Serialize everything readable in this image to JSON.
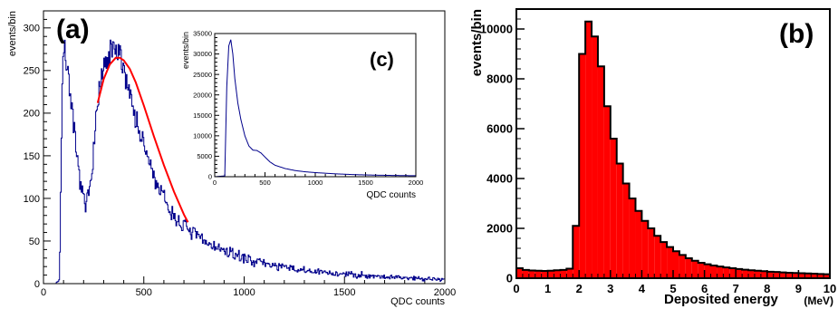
{
  "chart_data": [
    {
      "panel": "a",
      "type": "line",
      "panel_label": "(a)",
      "xlabel": "QDC counts",
      "ylabel": "events/bin",
      "xlim": [
        0,
        2000
      ],
      "ylim": [
        0,
        320
      ],
      "x_ticks": [
        0,
        500,
        1000,
        1500,
        2000
      ],
      "y_ticks": [
        0,
        50,
        100,
        150,
        200,
        250,
        300
      ],
      "series": [
        {
          "role": "histogram",
          "color": "#00008b",
          "x": [
            60,
            80,
            95,
            110,
            130,
            150,
            170,
            190,
            210,
            230,
            250,
            270,
            290,
            310,
            330,
            350,
            370,
            390,
            410,
            430,
            450,
            475,
            500,
            525,
            550,
            575,
            600,
            625,
            650,
            700,
            750,
            800,
            850,
            900,
            950,
            1000,
            1100,
            1200,
            1300,
            1400,
            1500,
            1600,
            1700,
            1800,
            1900,
            2000
          ],
          "y": [
            0,
            5,
            260,
            270,
            235,
            180,
            140,
            110,
            88,
            110,
            160,
            210,
            240,
            255,
            265,
            275,
            268,
            260,
            245,
            225,
            205,
            180,
            160,
            145,
            125,
            112,
            100,
            88,
            78,
            68,
            58,
            50,
            44,
            38,
            34,
            30,
            24,
            19,
            15,
            13,
            11,
            10,
            8,
            7,
            6,
            5
          ]
        },
        {
          "role": "fit",
          "color": "#ff0000",
          "x": [
            270,
            300,
            330,
            360,
            380,
            400,
            430,
            460,
            500,
            550,
            600,
            650,
            700,
            720
          ],
          "y": [
            212,
            240,
            257,
            265,
            265,
            262,
            252,
            236,
            209,
            173,
            139,
            108,
            81,
            72
          ]
        }
      ],
      "inset": {
        "panel": "c",
        "type": "line",
        "panel_label": "(c)",
        "xlabel": "QDC counts",
        "ylabel": "events/bin",
        "xlim": [
          0,
          2000
        ],
        "ylim": [
          0,
          35000
        ],
        "x_ticks": [
          0,
          500,
          1000,
          1500,
          2000
        ],
        "y_ticks": [
          0,
          5000,
          10000,
          15000,
          20000,
          25000,
          30000,
          35000
        ],
        "series": [
          {
            "color": "#00008b",
            "x": [
              0,
              100,
              120,
              140,
              160,
              180,
              200,
              230,
              260,
              300,
              340,
              380,
              420,
              460,
              500,
              550,
              600,
              700,
              800,
              900,
              1000,
              1200,
              1400,
              1600,
              1800,
              2000
            ],
            "y": [
              0,
              200,
              22000,
              32000,
              33500,
              30000,
              24000,
              18000,
              14000,
              10000,
              7500,
              6500,
              6400,
              5800,
              4800,
              3600,
              2800,
              2000,
              1500,
              1200,
              1000,
              700,
              500,
              380,
              300,
              240
            ]
          }
        ]
      }
    },
    {
      "panel": "b",
      "type": "bar",
      "panel_label": "(b)",
      "xlabel": "Deposited energy",
      "xunit": "(MeV)",
      "ylabel": "events/bin",
      "xlim": [
        0,
        10
      ],
      "ylim": [
        0,
        10800
      ],
      "x_ticks": [
        "0",
        "1",
        "2",
        "3",
        "4",
        "5",
        "6",
        "7",
        "8",
        "9",
        "10"
      ],
      "y_ticks": [
        "0",
        "2000",
        "4000",
        "6000",
        "8000",
        "10000"
      ],
      "fill_color": "#ff0000",
      "bin_width": 0.2,
      "bin_left_edges": [
        0.0,
        0.2,
        0.4,
        0.6,
        0.8,
        1.0,
        1.2,
        1.4,
        1.6,
        1.8,
        2.0,
        2.2,
        2.4,
        2.6,
        2.8,
        3.0,
        3.2,
        3.4,
        3.6,
        3.8,
        4.0,
        4.2,
        4.4,
        4.6,
        4.8,
        5.0,
        5.2,
        5.4,
        5.6,
        5.8,
        6.0,
        6.2,
        6.4,
        6.6,
        6.8,
        7.0,
        7.2,
        7.4,
        7.6,
        7.8,
        8.0,
        8.2,
        8.4,
        8.6,
        8.8,
        9.0,
        9.2,
        9.4,
        9.6,
        9.8
      ],
      "values": [
        400,
        330,
        310,
        300,
        290,
        300,
        320,
        330,
        380,
        2100,
        9000,
        10300,
        9700,
        8500,
        6900,
        5600,
        4600,
        3800,
        3200,
        2700,
        2300,
        2000,
        1700,
        1450,
        1250,
        1080,
        930,
        800,
        700,
        620,
        560,
        510,
        470,
        430,
        400,
        370,
        340,
        320,
        300,
        280,
        260,
        250,
        230,
        220,
        210,
        200,
        190,
        180,
        170,
        160
      ]
    }
  ]
}
